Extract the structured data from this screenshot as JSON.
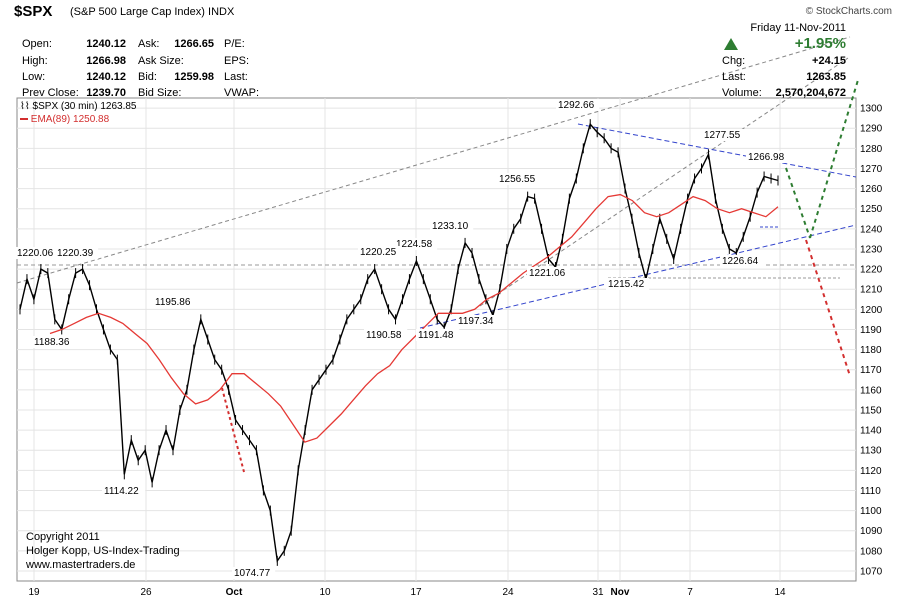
{
  "header": {
    "symbol": "$SPX",
    "description": "(S&P 500 Large Cap Index)",
    "exchange": "INDX",
    "watermark": "© StockCharts.com",
    "date": "Friday 11-Nov-2011",
    "pct_change": "+1.95%",
    "quote": [
      {
        "label": "Open:",
        "value": "1240.12"
      },
      {
        "label": "High:",
        "value": "1266.98"
      },
      {
        "label": "Low:",
        "value": "1240.12"
      },
      {
        "label": "Prev Close:",
        "value": "1239.70"
      }
    ],
    "book": [
      {
        "label": "Ask:",
        "value": "1266.65"
      },
      {
        "label": "Ask Size:",
        "value": ""
      },
      {
        "label": "Bid:",
        "value": "1259.98"
      },
      {
        "label": "Bid Size:",
        "value": ""
      }
    ],
    "fundamentals": [
      "P/E:",
      "EPS:",
      "Last:",
      "VWAP:"
    ],
    "change": [
      {
        "label": "Chg:",
        "value": "+24.15"
      },
      {
        "label": "Last:",
        "value": "1263.85"
      },
      {
        "label": "Volume:",
        "value": "2,570,204,672"
      }
    ],
    "up_color": "#2e7d32"
  },
  "legend": {
    "price": "$SPX (30 min) 1263.85",
    "ema": "EMA(89) 1250.88"
  },
  "copyright": [
    "Copyright 2011",
    "Holger Kopp, US-Index-Trading",
    "www.mastertraders.de"
  ],
  "chart_data": {
    "type": "line",
    "y_axis": {
      "min": 1065,
      "max": 1305,
      "ticks": [
        1070,
        1080,
        1090,
        1100,
        1110,
        1120,
        1130,
        1140,
        1150,
        1160,
        1170,
        1180,
        1190,
        1200,
        1210,
        1220,
        1230,
        1240,
        1250,
        1260,
        1270,
        1280,
        1290,
        1300
      ],
      "side": "right"
    },
    "x_axis_labels": [
      {
        "label": "19",
        "bold": false
      },
      {
        "label": "26",
        "bold": false
      },
      {
        "label": "Oct",
        "bold": true
      },
      {
        "label": "10",
        "bold": false
      },
      {
        "label": "17",
        "bold": false
      },
      {
        "label": "24",
        "bold": false
      },
      {
        "label": "31",
        "bold": false
      },
      {
        "label": "Nov",
        "bold": true
      },
      {
        "label": "7",
        "bold": false
      },
      {
        "label": "14",
        "bold": false
      }
    ],
    "grid": true,
    "price_series": [
      1200,
      1215,
      1205,
      1220,
      1218,
      1195,
      1190,
      1205,
      1218,
      1220,
      1212,
      1200,
      1190,
      1180,
      1175,
      1118,
      1135,
      1125,
      1130,
      1114,
      1130,
      1140,
      1130,
      1150,
      1160,
      1180,
      1195,
      1185,
      1175,
      1170,
      1160,
      1145,
      1140,
      1135,
      1130,
      1110,
      1100,
      1075,
      1080,
      1090,
      1120,
      1140,
      1160,
      1165,
      1170,
      1175,
      1185,
      1195,
      1200,
      1205,
      1215,
      1220,
      1210,
      1200,
      1195,
      1205,
      1215,
      1224,
      1215,
      1205,
      1195,
      1191,
      1200,
      1220,
      1233,
      1228,
      1215,
      1205,
      1197,
      1210,
      1230,
      1240,
      1245,
      1256,
      1255,
      1240,
      1225,
      1221,
      1235,
      1255,
      1265,
      1280,
      1292,
      1288,
      1285,
      1280,
      1278,
      1260,
      1245,
      1228,
      1215,
      1230,
      1245,
      1235,
      1225,
      1240,
      1255,
      1265,
      1270,
      1277,
      1255,
      1240,
      1230,
      1228,
      1236,
      1246,
      1258,
      1266,
      1265,
      1264
    ],
    "ema_series": [
      1188,
      1190,
      1193,
      1196,
      1198,
      1196,
      1193,
      1188,
      1183,
      1175,
      1166,
      1158,
      1153,
      1155,
      1160,
      1168,
      1168,
      1163,
      1158,
      1152,
      1143,
      1134,
      1136,
      1142,
      1148,
      1155,
      1162,
      1168,
      1172,
      1180,
      1186,
      1192,
      1198,
      1198,
      1198,
      1200,
      1205,
      1208,
      1213,
      1218,
      1222,
      1226,
      1231,
      1236,
      1243,
      1250,
      1256,
      1257,
      1254,
      1248,
      1246,
      1248,
      1252,
      1256,
      1254,
      1250,
      1248,
      1250,
      1248,
      1246,
      1251
    ],
    "data_labels": [
      "1292.66",
      "1277.55",
      "1266.98",
      "1256.55",
      "1233.10",
      "1224.58",
      "1220.25",
      "1220.06",
      "1220.39",
      "1195.86",
      "1188.36",
      "1190.58",
      "1191.48",
      "1197.34",
      "1221.06",
      "1215.42",
      "1226.64",
      "1114.22",
      "1074.77"
    ]
  }
}
